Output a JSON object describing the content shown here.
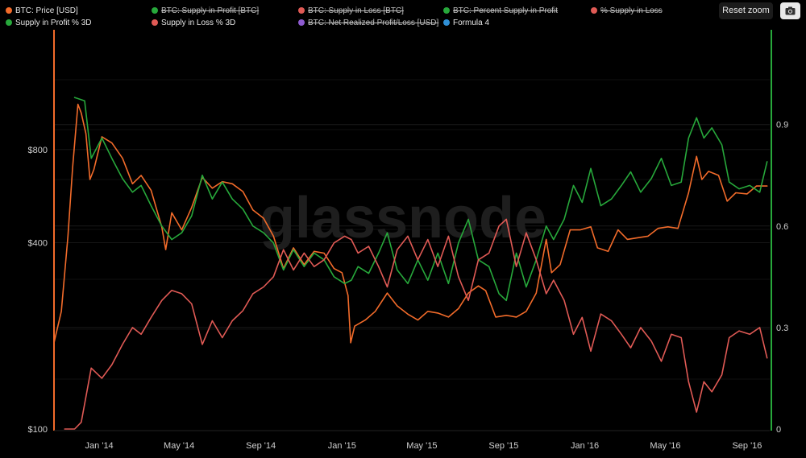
{
  "toolbar": {
    "reset_zoom": "Reset zoom",
    "camera_icon": "camera-icon"
  },
  "legend": [
    {
      "label": "BTC: Price [USD]",
      "color": "#f26b2a",
      "hidden": false
    },
    {
      "label": "BTC: Supply in Profit [BTC]",
      "color": "#27a83b",
      "hidden": true
    },
    {
      "label": "BTC: Supply in Loss [BTC]",
      "color": "#e05a55",
      "hidden": true
    },
    {
      "label": "BTC: Percent Supply in Profit",
      "color": "#27a83b",
      "hidden": true
    },
    {
      "label": "% Supply in Loss",
      "color": "#e05a55",
      "hidden": true
    },
    {
      "label": "Supply in Profit % 3D",
      "color": "#27a83b",
      "hidden": false
    },
    {
      "label": "Supply in Loss % 3D",
      "color": "#e05a55",
      "hidden": false
    },
    {
      "label": "BTC: Net Realized Profit/Loss [USD]",
      "color": "#8e5bd0",
      "hidden": true
    },
    {
      "label": "Formula 4",
      "color": "#2f8fd6",
      "hidden": false
    }
  ],
  "watermark": "glassnode",
  "chart_data": {
    "type": "line",
    "x_axis": {
      "type": "date",
      "ticks": [
        "Jan '14",
        "May '14",
        "Sep '14",
        "Jan '15",
        "May '15",
        "Sep '15",
        "Jan '16",
        "May '16",
        "Sep '16"
      ],
      "tick_dates": [
        "2014-01-01",
        "2014-05-01",
        "2014-09-01",
        "2015-01-01",
        "2015-05-01",
        "2015-09-01",
        "2016-01-01",
        "2016-05-01",
        "2016-09-01"
      ],
      "range": [
        "2013-10-25",
        "2016-10-05"
      ]
    },
    "y_left": {
      "scale": "log",
      "ticks": [
        "$100",
        "$400",
        "$800"
      ],
      "tick_values": [
        100,
        400,
        800
      ],
      "range": [
        100,
        1950
      ]
    },
    "y_right": {
      "scale": "linear",
      "ticks": [
        "0",
        "0.3",
        "0.6",
        "0.9"
      ],
      "tick_values": [
        0,
        0.3,
        0.6,
        0.9
      ],
      "range": [
        0,
        1.18
      ]
    },
    "colors": {
      "price": "#f26b2a",
      "profit": "#27a83b",
      "loss": "#e05a55",
      "left_axis": "#f26b2a",
      "right_axis": "#27a83b"
    },
    "series": [
      {
        "name": "BTC: Price [USD]",
        "axis": "left",
        "color": "#f26b2a",
        "points": [
          [
            "2013-10-25",
            190
          ],
          [
            "2013-11-05",
            240
          ],
          [
            "2013-11-15",
            420
          ],
          [
            "2013-11-22",
            700
          ],
          [
            "2013-11-30",
            1120
          ],
          [
            "2013-12-05",
            1050
          ],
          [
            "2013-12-12",
            900
          ],
          [
            "2013-12-18",
            640
          ],
          [
            "2013-12-24",
            690
          ],
          [
            "2014-01-05",
            880
          ],
          [
            "2014-01-20",
            840
          ],
          [
            "2014-02-05",
            750
          ],
          [
            "2014-02-20",
            620
          ],
          [
            "2014-03-05",
            660
          ],
          [
            "2014-03-20",
            590
          ],
          [
            "2014-04-05",
            450
          ],
          [
            "2014-04-11",
            380
          ],
          [
            "2014-04-20",
            500
          ],
          [
            "2014-05-05",
            440
          ],
          [
            "2014-05-20",
            520
          ],
          [
            "2014-06-05",
            650
          ],
          [
            "2014-06-20",
            600
          ],
          [
            "2014-07-05",
            630
          ],
          [
            "2014-07-20",
            620
          ],
          [
            "2014-08-05",
            585
          ],
          [
            "2014-08-20",
            510
          ],
          [
            "2014-09-05",
            480
          ],
          [
            "2014-09-20",
            420
          ],
          [
            "2014-10-05",
            330
          ],
          [
            "2014-10-20",
            385
          ],
          [
            "2014-11-05",
            340
          ],
          [
            "2014-11-20",
            375
          ],
          [
            "2014-12-05",
            370
          ],
          [
            "2014-12-20",
            330
          ],
          [
            "2015-01-01",
            320
          ],
          [
            "2015-01-10",
            270
          ],
          [
            "2015-01-14",
            190
          ],
          [
            "2015-01-20",
            215
          ],
          [
            "2015-02-05",
            225
          ],
          [
            "2015-02-20",
            240
          ],
          [
            "2015-03-10",
            275
          ],
          [
            "2015-03-25",
            250
          ],
          [
            "2015-04-10",
            235
          ],
          [
            "2015-04-25",
            225
          ],
          [
            "2015-05-10",
            240
          ],
          [
            "2015-05-25",
            237
          ],
          [
            "2015-06-10",
            230
          ],
          [
            "2015-06-25",
            245
          ],
          [
            "2015-07-10",
            275
          ],
          [
            "2015-07-25",
            290
          ],
          [
            "2015-08-05",
            280
          ],
          [
            "2015-08-20",
            230
          ],
          [
            "2015-09-05",
            233
          ],
          [
            "2015-09-20",
            230
          ],
          [
            "2015-10-05",
            240
          ],
          [
            "2015-10-20",
            275
          ],
          [
            "2015-11-04",
            410
          ],
          [
            "2015-11-12",
            320
          ],
          [
            "2015-11-25",
            340
          ],
          [
            "2015-12-10",
            440
          ],
          [
            "2015-12-25",
            440
          ],
          [
            "2016-01-10",
            450
          ],
          [
            "2016-01-20",
            385
          ],
          [
            "2016-02-05",
            375
          ],
          [
            "2016-02-20",
            440
          ],
          [
            "2016-03-05",
            410
          ],
          [
            "2016-03-20",
            415
          ],
          [
            "2016-04-05",
            420
          ],
          [
            "2016-04-20",
            445
          ],
          [
            "2016-05-05",
            450
          ],
          [
            "2016-05-20",
            445
          ],
          [
            "2016-06-05",
            580
          ],
          [
            "2016-06-17",
            760
          ],
          [
            "2016-06-25",
            640
          ],
          [
            "2016-07-05",
            680
          ],
          [
            "2016-07-20",
            660
          ],
          [
            "2016-08-02",
            545
          ],
          [
            "2016-08-15",
            580
          ],
          [
            "2016-09-01",
            575
          ],
          [
            "2016-09-15",
            610
          ],
          [
            "2016-10-01",
            610
          ]
        ]
      },
      {
        "name": "Supply in Profit % 3D",
        "axis": "right",
        "color": "#27a83b",
        "points": [
          [
            "2013-11-25",
            0.98
          ],
          [
            "2013-12-10",
            0.97
          ],
          [
            "2013-12-20",
            0.8
          ],
          [
            "2014-01-05",
            0.86
          ],
          [
            "2014-01-20",
            0.8
          ],
          [
            "2014-02-05",
            0.74
          ],
          [
            "2014-02-20",
            0.7
          ],
          [
            "2014-03-05",
            0.72
          ],
          [
            "2014-03-20",
            0.66
          ],
          [
            "2014-04-05",
            0.6
          ],
          [
            "2014-04-20",
            0.56
          ],
          [
            "2014-05-05",
            0.58
          ],
          [
            "2014-05-20",
            0.63
          ],
          [
            "2014-06-05",
            0.75
          ],
          [
            "2014-06-20",
            0.68
          ],
          [
            "2014-07-05",
            0.73
          ],
          [
            "2014-07-20",
            0.68
          ],
          [
            "2014-08-05",
            0.65
          ],
          [
            "2014-08-20",
            0.6
          ],
          [
            "2014-09-05",
            0.58
          ],
          [
            "2014-09-20",
            0.55
          ],
          [
            "2014-10-05",
            0.47
          ],
          [
            "2014-10-20",
            0.53
          ],
          [
            "2014-11-05",
            0.48
          ],
          [
            "2014-11-20",
            0.52
          ],
          [
            "2014-12-05",
            0.5
          ],
          [
            "2014-12-20",
            0.45
          ],
          [
            "2015-01-05",
            0.43
          ],
          [
            "2015-01-15",
            0.44
          ],
          [
            "2015-01-25",
            0.48
          ],
          [
            "2015-02-10",
            0.46
          ],
          [
            "2015-02-25",
            0.52
          ],
          [
            "2015-03-10",
            0.58
          ],
          [
            "2015-03-25",
            0.47
          ],
          [
            "2015-04-10",
            0.43
          ],
          [
            "2015-04-25",
            0.5
          ],
          [
            "2015-05-10",
            0.44
          ],
          [
            "2015-05-25",
            0.52
          ],
          [
            "2015-06-10",
            0.43
          ],
          [
            "2015-06-25",
            0.55
          ],
          [
            "2015-07-10",
            0.62
          ],
          [
            "2015-07-25",
            0.5
          ],
          [
            "2015-08-10",
            0.48
          ],
          [
            "2015-08-25",
            0.4
          ],
          [
            "2015-09-05",
            0.38
          ],
          [
            "2015-09-20",
            0.52
          ],
          [
            "2015-10-05",
            0.42
          ],
          [
            "2015-10-20",
            0.5
          ],
          [
            "2015-11-04",
            0.6
          ],
          [
            "2015-11-15",
            0.56
          ],
          [
            "2015-12-01",
            0.62
          ],
          [
            "2015-12-15",
            0.72
          ],
          [
            "2015-12-28",
            0.67
          ],
          [
            "2016-01-10",
            0.77
          ],
          [
            "2016-01-25",
            0.66
          ],
          [
            "2016-02-10",
            0.68
          ],
          [
            "2016-02-25",
            0.72
          ],
          [
            "2016-03-10",
            0.76
          ],
          [
            "2016-03-25",
            0.7
          ],
          [
            "2016-04-10",
            0.74
          ],
          [
            "2016-04-25",
            0.8
          ],
          [
            "2016-05-10",
            0.72
          ],
          [
            "2016-05-25",
            0.73
          ],
          [
            "2016-06-05",
            0.86
          ],
          [
            "2016-06-17",
            0.92
          ],
          [
            "2016-06-28",
            0.86
          ],
          [
            "2016-07-10",
            0.89
          ],
          [
            "2016-07-25",
            0.84
          ],
          [
            "2016-08-05",
            0.73
          ],
          [
            "2016-08-20",
            0.71
          ],
          [
            "2016-09-05",
            0.72
          ],
          [
            "2016-09-20",
            0.7
          ],
          [
            "2016-10-01",
            0.79
          ]
        ]
      },
      {
        "name": "Supply in Loss % 3D",
        "axis": "right",
        "color": "#e05a55",
        "points": [
          [
            "2013-11-10",
            0.0
          ],
          [
            "2013-11-25",
            0.0
          ],
          [
            "2013-12-05",
            0.02
          ],
          [
            "2013-12-20",
            0.18
          ],
          [
            "2014-01-05",
            0.15
          ],
          [
            "2014-01-20",
            0.19
          ],
          [
            "2014-02-05",
            0.25
          ],
          [
            "2014-02-20",
            0.3
          ],
          [
            "2014-03-05",
            0.28
          ],
          [
            "2014-03-20",
            0.33
          ],
          [
            "2014-04-05",
            0.38
          ],
          [
            "2014-04-20",
            0.41
          ],
          [
            "2014-05-05",
            0.4
          ],
          [
            "2014-05-20",
            0.37
          ],
          [
            "2014-06-05",
            0.25
          ],
          [
            "2014-06-20",
            0.32
          ],
          [
            "2014-07-05",
            0.27
          ],
          [
            "2014-07-20",
            0.32
          ],
          [
            "2014-08-05",
            0.35
          ],
          [
            "2014-08-20",
            0.4
          ],
          [
            "2014-09-05",
            0.42
          ],
          [
            "2014-09-20",
            0.45
          ],
          [
            "2014-10-05",
            0.53
          ],
          [
            "2014-10-20",
            0.47
          ],
          [
            "2014-11-05",
            0.52
          ],
          [
            "2014-11-20",
            0.48
          ],
          [
            "2014-12-05",
            0.5
          ],
          [
            "2014-12-20",
            0.55
          ],
          [
            "2015-01-05",
            0.57
          ],
          [
            "2015-01-15",
            0.56
          ],
          [
            "2015-01-25",
            0.52
          ],
          [
            "2015-02-10",
            0.54
          ],
          [
            "2015-02-25",
            0.48
          ],
          [
            "2015-03-10",
            0.42
          ],
          [
            "2015-03-25",
            0.53
          ],
          [
            "2015-04-10",
            0.57
          ],
          [
            "2015-04-25",
            0.5
          ],
          [
            "2015-05-10",
            0.56
          ],
          [
            "2015-05-25",
            0.48
          ],
          [
            "2015-06-10",
            0.57
          ],
          [
            "2015-06-25",
            0.45
          ],
          [
            "2015-07-10",
            0.38
          ],
          [
            "2015-07-25",
            0.5
          ],
          [
            "2015-08-10",
            0.52
          ],
          [
            "2015-08-25",
            0.6
          ],
          [
            "2015-09-05",
            0.62
          ],
          [
            "2015-09-20",
            0.48
          ],
          [
            "2015-10-05",
            0.58
          ],
          [
            "2015-10-20",
            0.5
          ],
          [
            "2015-11-04",
            0.4
          ],
          [
            "2015-11-15",
            0.44
          ],
          [
            "2015-12-01",
            0.38
          ],
          [
            "2015-12-15",
            0.28
          ],
          [
            "2015-12-28",
            0.33
          ],
          [
            "2016-01-10",
            0.23
          ],
          [
            "2016-01-25",
            0.34
          ],
          [
            "2016-02-10",
            0.32
          ],
          [
            "2016-02-25",
            0.28
          ],
          [
            "2016-03-10",
            0.24
          ],
          [
            "2016-03-25",
            0.3
          ],
          [
            "2016-04-10",
            0.26
          ],
          [
            "2016-04-25",
            0.2
          ],
          [
            "2016-05-10",
            0.28
          ],
          [
            "2016-05-25",
            0.27
          ],
          [
            "2016-06-05",
            0.14
          ],
          [
            "2016-06-17",
            0.05
          ],
          [
            "2016-06-28",
            0.14
          ],
          [
            "2016-07-10",
            0.11
          ],
          [
            "2016-07-25",
            0.16
          ],
          [
            "2016-08-05",
            0.27
          ],
          [
            "2016-08-20",
            0.29
          ],
          [
            "2016-09-05",
            0.28
          ],
          [
            "2016-09-20",
            0.3
          ],
          [
            "2016-10-01",
            0.21
          ]
        ]
      }
    ],
    "grid": true,
    "legend_position": "top"
  }
}
